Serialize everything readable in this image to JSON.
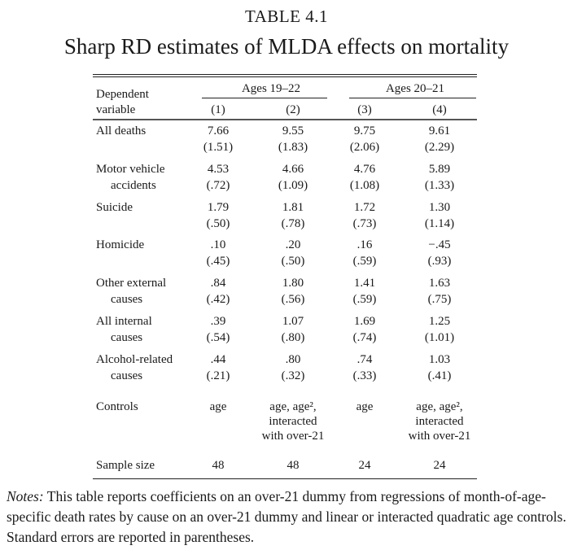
{
  "table_number": "TABLE 4.1",
  "title": "Sharp RD estimates of MLDA effects on mortality",
  "header": {
    "dep_var_line1": "Dependent",
    "dep_var_line2": "variable",
    "group1": "Ages 19–22",
    "group2": "Ages 20–21",
    "columns": [
      "(1)",
      "(2)",
      "(3)",
      "(4)"
    ]
  },
  "rows": [
    {
      "label1": "All deaths",
      "label2": "",
      "coef": [
        "7.66",
        "9.55",
        "9.75",
        "9.61"
      ],
      "se": [
        "(1.51)",
        "(1.83)",
        "(2.06)",
        "(2.29)"
      ]
    },
    {
      "label1": "Motor vehicle",
      "label2": "accidents",
      "coef": [
        "4.53",
        "4.66",
        "4.76",
        "5.89"
      ],
      "se": [
        "(.72)",
        "(1.09)",
        "(1.08)",
        "(1.33)"
      ]
    },
    {
      "label1": "Suicide",
      "label2": "",
      "coef": [
        "1.79",
        "1.81",
        "1.72",
        "1.30"
      ],
      "se": [
        "(.50)",
        "(.78)",
        "(.73)",
        "(1.14)"
      ]
    },
    {
      "label1": "Homicide",
      "label2": "",
      "coef": [
        ".10",
        ".20",
        ".16",
        "−.45"
      ],
      "se": [
        "(.45)",
        "(.50)",
        "(.59)",
        "(.93)"
      ]
    },
    {
      "label1": "Other external",
      "label2": "causes",
      "coef": [
        ".84",
        "1.80",
        "1.41",
        "1.63"
      ],
      "se": [
        "(.42)",
        "(.56)",
        "(.59)",
        "(.75)"
      ]
    },
    {
      "label1": "All internal",
      "label2": "causes",
      "coef": [
        ".39",
        "1.07",
        "1.69",
        "1.25"
      ],
      "se": [
        "(.54)",
        "(.80)",
        "(.74)",
        "(1.01)"
      ]
    },
    {
      "label1": "Alcohol-related",
      "label2": "causes",
      "coef": [
        ".44",
        ".80",
        ".74",
        "1.03"
      ],
      "se": [
        "(.21)",
        "(.32)",
        "(.33)",
        "(.41)"
      ]
    }
  ],
  "controls": {
    "label": "Controls",
    "values": [
      [
        "age"
      ],
      [
        "age, age²,",
        "interacted",
        "with over-21"
      ],
      [
        "age"
      ],
      [
        "age, age²,",
        "interacted",
        "with over-21"
      ]
    ]
  },
  "sample_size": {
    "label": "Sample size",
    "values": [
      "48",
      "48",
      "24",
      "24"
    ]
  },
  "notes": {
    "lead": "Notes:",
    "text": " This table reports coefficients on an over-21 dummy from regressions of month-of-age-specific death rates by cause on an over-21 dummy and linear or interacted quadratic age controls. Standard errors are reported in parentheses."
  }
}
